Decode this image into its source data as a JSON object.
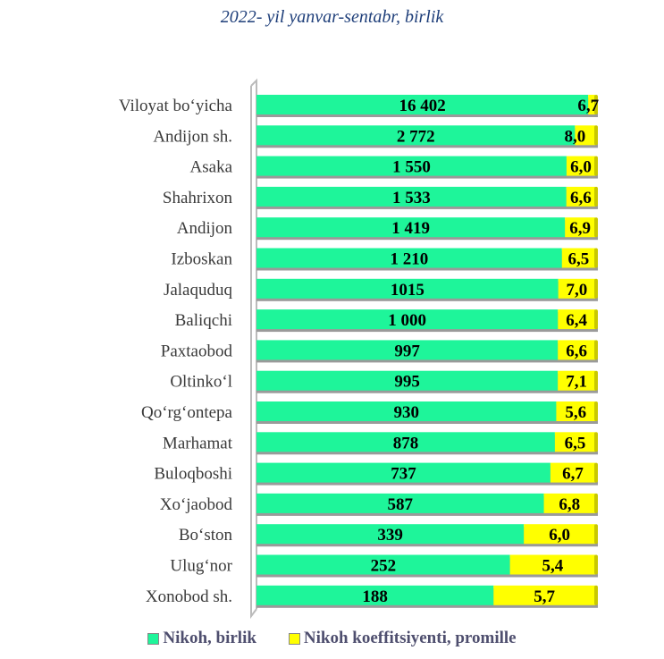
{
  "chart_data": {
    "type": "bar",
    "stacked": true,
    "orientation": "horizontal",
    "title": "2022- yil yanvar-sentabr, birlik",
    "categories": [
      "Viloyat bo‘yicha",
      "Andijon sh.",
      "Asaka",
      "Shahrixon",
      "Andijon",
      "Izboskan",
      "Jalaquduq",
      "Baliqchi",
      "Paxtaobod",
      "Oltinko‘l",
      "Qo‘rg‘ontepa",
      "Marhamat",
      "Buloqboshi",
      "Xo‘jaobod",
      "Bo‘ston",
      "Ulug‘nor",
      "Xonobod sh."
    ],
    "series": [
      {
        "name": "Nikoh, birlik",
        "color": "#1ef59a",
        "values": [
          16402,
          2772,
          1550,
          1533,
          1419,
          1210,
          1015,
          1000,
          997,
          995,
          930,
          878,
          737,
          587,
          339,
          252,
          188
        ],
        "labels": [
          "16 402",
          "2 772",
          "1 550",
          "1 533",
          "1 419",
          "1 210",
          "1015",
          "1 000",
          "997",
          "995",
          "930",
          "878",
          "737",
          "587",
          "339",
          "252",
          "188"
        ]
      },
      {
        "name": "Nikoh koeffitsiyenti, promille",
        "color": "#ffff00",
        "values": [
          6.7,
          8.0,
          6.0,
          6.6,
          6.9,
          6.5,
          7.0,
          6.4,
          6.6,
          7.1,
          5.6,
          6.5,
          6.7,
          6.8,
          6.0,
          5.4,
          5.7
        ],
        "labels": [
          "6,7",
          "8,0",
          "6,0",
          "6,6",
          "6,9",
          "6,5",
          "7,0",
          "6,4",
          "6,6",
          "7,1",
          "5,6",
          "6,5",
          "6,7",
          "6,8",
          "6,0",
          "5,4",
          "5,7"
        ]
      }
    ],
    "legend": "bottom"
  }
}
